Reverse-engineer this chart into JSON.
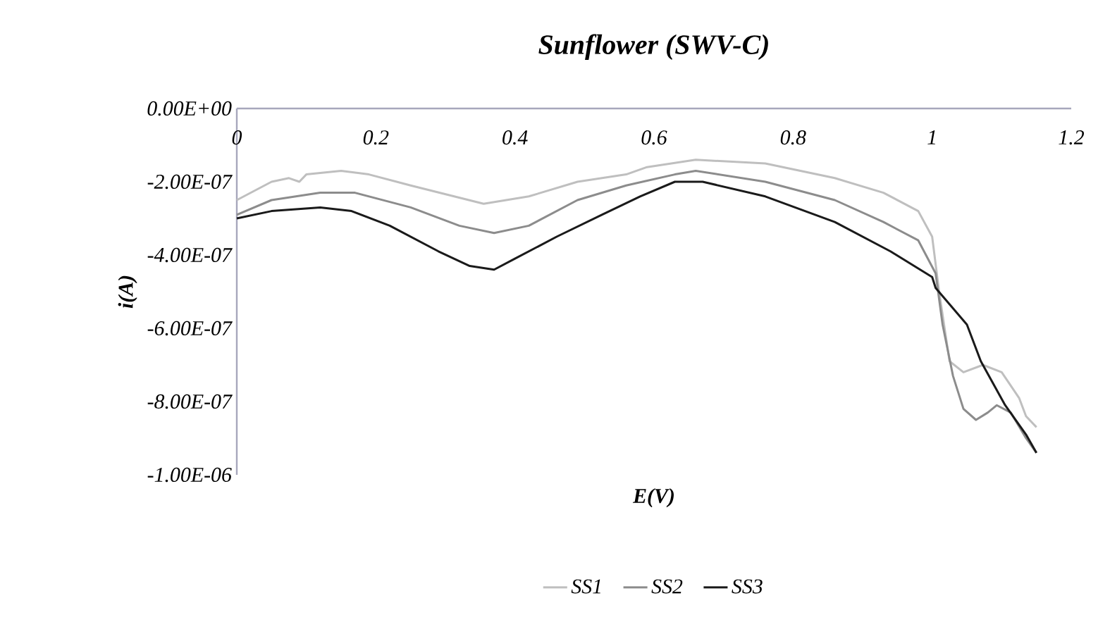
{
  "chart_data": {
    "type": "line",
    "title": "Sunflower (SWV-C)",
    "xlabel": "E(V)",
    "ylabel": "i(A)",
    "xlim": [
      0,
      1.2
    ],
    "ylim": [
      -1e-06,
      0
    ],
    "xticks": [
      0,
      0.2,
      0.4,
      0.6,
      0.8,
      1,
      1.2
    ],
    "yticks": [
      {
        "value": 0,
        "label": "0.00E+00"
      },
      {
        "value": -2e-07,
        "label": "-2.00E-07"
      },
      {
        "value": -4e-07,
        "label": "-4.00E-07"
      },
      {
        "value": -6e-07,
        "label": "-6.00E-07"
      },
      {
        "value": -8e-07,
        "label": "-8.00E-07"
      },
      {
        "value": -1e-06,
        "label": "-1.00E-06"
      }
    ],
    "legend": "bottom",
    "series": [
      {
        "name": "SS1",
        "color": "#bfbfbf",
        "x": [
          0,
          0.05,
          0.075,
          0.09,
          0.1,
          0.15,
          0.19,
          0.25,
          0.355,
          0.42,
          0.49,
          0.56,
          0.59,
          0.66,
          0.76,
          0.86,
          0.93,
          0.98,
          1.0,
          1.01,
          1.025,
          1.045,
          1.073,
          1.1,
          1.125,
          1.135,
          1.15
        ],
        "values": [
          -2.5e-07,
          -2e-07,
          -1.9e-07,
          -2e-07,
          -1.8e-07,
          -1.7e-07,
          -1.8e-07,
          -2.1e-07,
          -2.6e-07,
          -2.4e-07,
          -2e-07,
          -1.8e-07,
          -1.6e-07,
          -1.4e-07,
          -1.5e-07,
          -1.9e-07,
          -2.3e-07,
          -2.8e-07,
          -3.5e-07,
          -5e-07,
          -6.9e-07,
          -7.2e-07,
          -7e-07,
          -7.2e-07,
          -7.9e-07,
          -8.4e-07,
          -8.7e-07
        ]
      },
      {
        "name": "SS2",
        "color": "#8c8c8c",
        "x": [
          0,
          0.05,
          0.12,
          0.17,
          0.25,
          0.32,
          0.37,
          0.42,
          0.49,
          0.56,
          0.63,
          0.66,
          0.76,
          0.86,
          0.93,
          0.98,
          1.005,
          1.015,
          1.03,
          1.045,
          1.063,
          1.08,
          1.093,
          1.113,
          1.135,
          1.15
        ],
        "values": [
          -2.9e-07,
          -2.5e-07,
          -2.3e-07,
          -2.3e-07,
          -2.7e-07,
          -3.2e-07,
          -3.4e-07,
          -3.2e-07,
          -2.5e-07,
          -2.1e-07,
          -1.8e-07,
          -1.7e-07,
          -2e-07,
          -2.5e-07,
          -3.1e-07,
          -3.6e-07,
          -4.5e-07,
          -5.9e-07,
          -7.3e-07,
          -8.2e-07,
          -8.5e-07,
          -8.3e-07,
          -8.1e-07,
          -8.3e-07,
          -9e-07,
          -9.4e-07
        ]
      },
      {
        "name": "SS3",
        "color": "#1a1a1a",
        "x": [
          0,
          0.05,
          0.12,
          0.165,
          0.22,
          0.29,
          0.335,
          0.37,
          0.4,
          0.46,
          0.525,
          0.58,
          0.63,
          0.67,
          0.76,
          0.86,
          0.94,
          1.0,
          1.005,
          1.05,
          1.07,
          1.105,
          1.135,
          1.15
        ],
        "values": [
          -3e-07,
          -2.8e-07,
          -2.7e-07,
          -2.8e-07,
          -3.2e-07,
          -3.9e-07,
          -4.3e-07,
          -4.4e-07,
          -4.1e-07,
          -3.5e-07,
          -2.9e-07,
          -2.4e-07,
          -2e-07,
          -2e-07,
          -2.4e-07,
          -3.1e-07,
          -3.9e-07,
          -4.6e-07,
          -4.9e-07,
          -5.9e-07,
          -6.9e-07,
          -8.1e-07,
          -8.9e-07,
          -9.4e-07
        ]
      }
    ]
  }
}
